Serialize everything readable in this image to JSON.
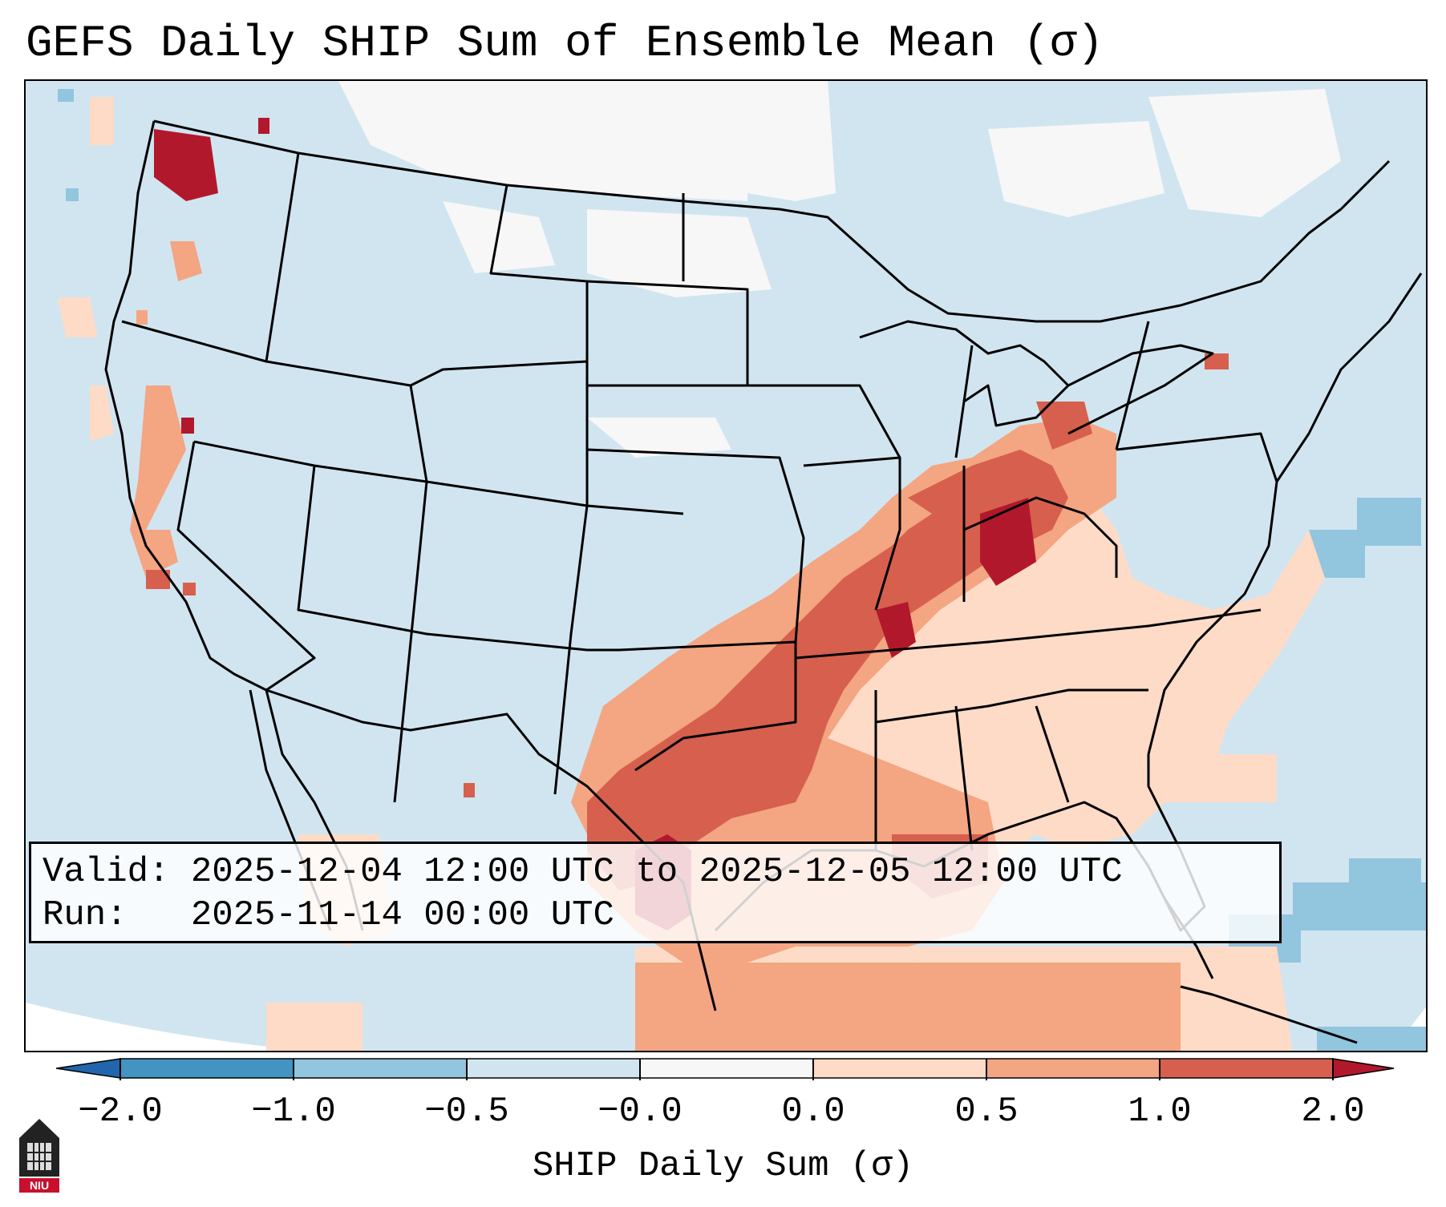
{
  "title": "GEFS Daily SHIP Sum of Ensemble Mean (σ)",
  "info": {
    "valid_label": "Valid:",
    "valid_value": "2025-12-04 12:00 UTC to 2025-12-05 12:00 UTC",
    "run_label": "Run:",
    "run_value": "2025-11-14 00:00 UTC"
  },
  "colorbar": {
    "label": "SHIP Daily Sum (σ)",
    "ticks": [
      "−2.0",
      "−1.0",
      "−0.5",
      "−0.0",
      "0.0",
      "0.5",
      "1.0",
      "2.0"
    ],
    "colors": [
      "#4393c3",
      "#92c5de",
      "#d1e5f0",
      "#f7f7f7",
      "#fddbc7",
      "#f4a582",
      "#d6604d"
    ],
    "extend_low_color": "#2166ac",
    "extend_high_color": "#b2182b"
  },
  "map": {
    "region": "Contiguous United States",
    "background_color": "#d1e5f0",
    "highest_anomaly_areas": [
      "Texas",
      "Arkansas",
      "Missouri",
      "Indiana",
      "Kentucky",
      "Ohio",
      "Washington"
    ]
  },
  "logo": {
    "text": "NIU",
    "icon": "niu-logo-icon"
  }
}
